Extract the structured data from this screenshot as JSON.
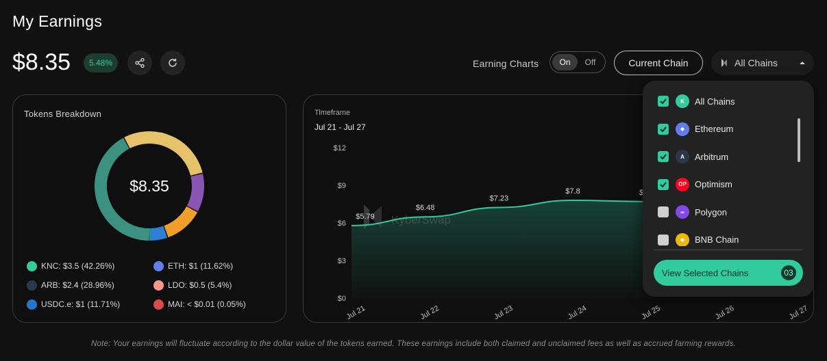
{
  "page": {
    "title": "My Earnings",
    "total": "$8.35",
    "change_pct": "5.48%"
  },
  "controls": {
    "earning_charts_label": "Earning Charts",
    "toggle_on": "On",
    "toggle_off": "Off",
    "current_chain_label": "Current Chain",
    "all_chains_label": "All Chains"
  },
  "tokens": {
    "title": "Tokens Breakdown",
    "center_value": "$8.35",
    "items": [
      {
        "text": "KNC: $3.5 (42.26%)",
        "symbol": "KNC",
        "color": "#31cb9e",
        "icon": "knc-icon"
      },
      {
        "text": "ETH: $1 (11.62%)",
        "symbol": "ETH",
        "color": "#627eea",
        "icon": "eth-icon"
      },
      {
        "text": "ARB: $2.4 (28.96%)",
        "symbol": "ARB",
        "color": "#2d374b",
        "icon": "arb-icon"
      },
      {
        "text": "LDO: $0.5 (5.4%)",
        "symbol": "LDO",
        "color": "#f69988",
        "icon": "ldo-icon"
      },
      {
        "text": "USDC.e: $1 (11.71%)",
        "symbol": "USDC.e",
        "color": "#2775ca",
        "icon": "usdc-icon"
      },
      {
        "text": "MAI: < $0.01 (0.05%)",
        "symbol": "MAI",
        "color": "#db4c4c",
        "icon": "mai-icon"
      }
    ],
    "donut_segments": [
      {
        "name": "KNC",
        "pct": 42.26,
        "color": "#3c9281"
      },
      {
        "name": "ARB",
        "pct": 28.96,
        "color": "#e6c36b"
      },
      {
        "name": "ETH",
        "pct": 11.62,
        "color": "#8855b3"
      },
      {
        "name": "USDC.e",
        "pct": 11.71,
        "color": "#f0a02a"
      },
      {
        "name": "LDO",
        "pct": 5.4,
        "color": "#2f7fd6"
      },
      {
        "name": "MAI",
        "pct": 0.05,
        "color": "#37b58e"
      }
    ]
  },
  "chart": {
    "timeframe_label": "Timeframe",
    "timeframe_range": "Jul 21 - Jul 27",
    "watermark": "KyberSwap"
  },
  "chart_data": {
    "type": "area",
    "x": [
      "Jul 21",
      "Jul 22",
      "Jul 23",
      "Jul 24",
      "Jul 25",
      "Jul 26",
      "Jul 27"
    ],
    "values": [
      5.79,
      6.48,
      7.23,
      7.8,
      7.7,
      null,
      null
    ],
    "point_labels": [
      "$5.79",
      "$6.48",
      "$7.23",
      "$7.8",
      "$7.7",
      "",
      ""
    ],
    "yticks": [
      "$0",
      "$3",
      "$6",
      "$9",
      "$12"
    ],
    "ylim": [
      0,
      12
    ],
    "color": "#31cb9e"
  },
  "dropdown": {
    "items": [
      {
        "label": "All Chains",
        "checked": true,
        "icon": "kyber-icon",
        "color": "#31cb9e",
        "glyph": "K"
      },
      {
        "label": "Ethereum",
        "checked": true,
        "icon": "ethereum-icon",
        "color": "#627eea",
        "glyph": "◆"
      },
      {
        "label": "Arbitrum",
        "checked": true,
        "icon": "arbitrum-icon",
        "color": "#2d374b",
        "glyph": "A"
      },
      {
        "label": "Optimism",
        "checked": true,
        "icon": "optimism-icon",
        "color": "#ff0420",
        "glyph": "OP"
      },
      {
        "label": "Polygon",
        "checked": false,
        "icon": "polygon-icon",
        "color": "#8247e5",
        "glyph": "∞"
      },
      {
        "label": "BNB Chain",
        "checked": false,
        "icon": "bnb-icon",
        "color": "#f0b90b",
        "glyph": "◆"
      }
    ],
    "view_label": "View Selected Chains",
    "selected_count": "03"
  },
  "note": "Note: Your earnings will fluctuate according to the dollar value of the tokens earned. These earnings include both claimed and unclaimed fees as well as accrued farming rewards."
}
